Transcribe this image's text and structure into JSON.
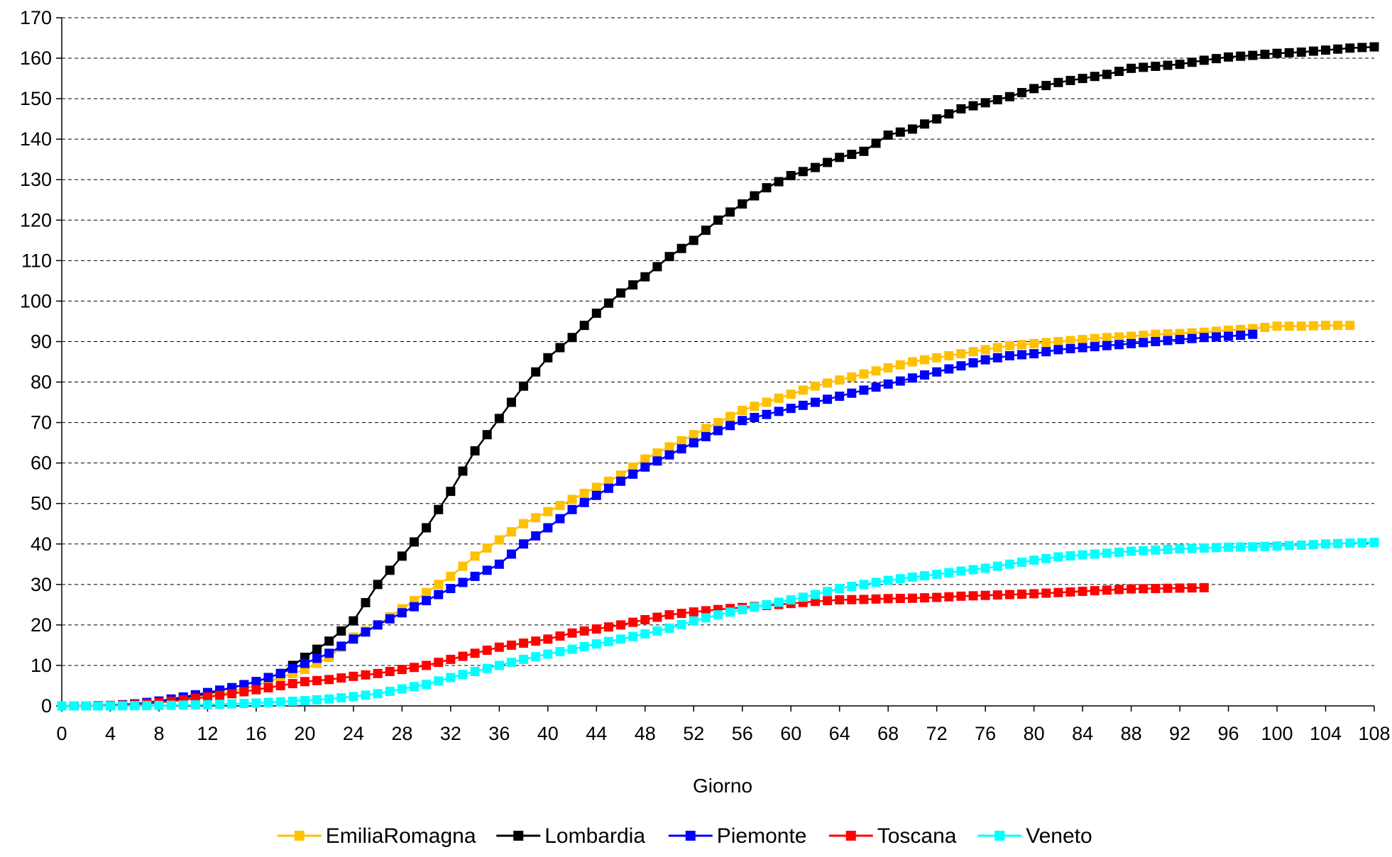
{
  "chart_data": {
    "type": "line",
    "title": "",
    "xlabel": "Giorno",
    "ylabel": "",
    "xlim": [
      0,
      108
    ],
    "ylim": [
      0,
      170
    ],
    "x_ticks": [
      "0",
      "4",
      "8",
      "12",
      "16",
      "20",
      "24",
      "28",
      "32",
      "36",
      "40",
      "44",
      "48",
      "52",
      "56",
      "60",
      "64",
      "68",
      "72",
      "76",
      "80",
      "84",
      "88",
      "92",
      "96",
      "100",
      "104",
      "108"
    ],
    "y_ticks": [
      "0",
      "10",
      "20",
      "30",
      "40",
      "50",
      "60",
      "70",
      "80",
      "90",
      "100",
      "110",
      "120",
      "130",
      "140",
      "150",
      "160",
      "170"
    ],
    "grid": "horizontal dashed",
    "legend_position": "bottom",
    "series": [
      {
        "name": "EmiliaRomagna",
        "color": "#FFC000",
        "points": [
          [
            0,
            0
          ],
          [
            2,
            0
          ],
          [
            4,
            0.1
          ],
          [
            6,
            0.3
          ],
          [
            8,
            0.8
          ],
          [
            10,
            1.5
          ],
          [
            12,
            2.5
          ],
          [
            14,
            3.5
          ],
          [
            16,
            5
          ],
          [
            18,
            7
          ],
          [
            20,
            9
          ],
          [
            22,
            12
          ],
          [
            24,
            17
          ],
          [
            26,
            20
          ],
          [
            28,
            24
          ],
          [
            30,
            28
          ],
          [
            32,
            32
          ],
          [
            34,
            37
          ],
          [
            36,
            41
          ],
          [
            38,
            45
          ],
          [
            40,
            48
          ],
          [
            42,
            51
          ],
          [
            44,
            54
          ],
          [
            46,
            57
          ],
          [
            48,
            61
          ],
          [
            50,
            64
          ],
          [
            52,
            67
          ],
          [
            54,
            70
          ],
          [
            56,
            73
          ],
          [
            58,
            75
          ],
          [
            60,
            77
          ],
          [
            62,
            79
          ],
          [
            64,
            80.5
          ],
          [
            66,
            82
          ],
          [
            68,
            83.5
          ],
          [
            70,
            85
          ],
          [
            72,
            86
          ],
          [
            74,
            87
          ],
          [
            76,
            88
          ],
          [
            78,
            89
          ],
          [
            80,
            89.5
          ],
          [
            82,
            90
          ],
          [
            84,
            90.5
          ],
          [
            86,
            91
          ],
          [
            88,
            91.3
          ],
          [
            90,
            91.8
          ],
          [
            92,
            92
          ],
          [
            94,
            92.3
          ],
          [
            96,
            92.8
          ],
          [
            98,
            93.2
          ],
          [
            100,
            93.8
          ],
          [
            102,
            93.8
          ],
          [
            104,
            94
          ],
          [
            106,
            94
          ]
        ]
      },
      {
        "name": "Lombardia",
        "color": "#000000",
        "points": [
          [
            0,
            0
          ],
          [
            2,
            0
          ],
          [
            4,
            0.1
          ],
          [
            6,
            0.4
          ],
          [
            8,
            1
          ],
          [
            10,
            2
          ],
          [
            12,
            3
          ],
          [
            14,
            4.5
          ],
          [
            16,
            6
          ],
          [
            18,
            8
          ],
          [
            20,
            12
          ],
          [
            22,
            16
          ],
          [
            24,
            21
          ],
          [
            26,
            30
          ],
          [
            28,
            37
          ],
          [
            30,
            44
          ],
          [
            32,
            53
          ],
          [
            34,
            63
          ],
          [
            36,
            71
          ],
          [
            38,
            79
          ],
          [
            40,
            86
          ],
          [
            42,
            91
          ],
          [
            44,
            97
          ],
          [
            46,
            102
          ],
          [
            48,
            106
          ],
          [
            50,
            111
          ],
          [
            52,
            115
          ],
          [
            54,
            120
          ],
          [
            56,
            124
          ],
          [
            58,
            128
          ],
          [
            60,
            131
          ],
          [
            62,
            133
          ],
          [
            64,
            135.5
          ],
          [
            66,
            137
          ],
          [
            68,
            141
          ],
          [
            70,
            142.5
          ],
          [
            72,
            145
          ],
          [
            74,
            147.5
          ],
          [
            76,
            149
          ],
          [
            78,
            150.5
          ],
          [
            80,
            152.5
          ],
          [
            82,
            154
          ],
          [
            84,
            155
          ],
          [
            86,
            156
          ],
          [
            88,
            157.5
          ],
          [
            90,
            158
          ],
          [
            92,
            158.5
          ],
          [
            94,
            159.5
          ],
          [
            96,
            160.3
          ],
          [
            98,
            160.7
          ],
          [
            100,
            161.2
          ],
          [
            102,
            161.5
          ],
          [
            104,
            162
          ],
          [
            106,
            162.5
          ],
          [
            108,
            162.8
          ]
        ]
      },
      {
        "name": "Piemonte",
        "color": "#0000FF",
        "points": [
          [
            0,
            0
          ],
          [
            2,
            0
          ],
          [
            4,
            0.1
          ],
          [
            6,
            0.5
          ],
          [
            8,
            1.2
          ],
          [
            10,
            2.2
          ],
          [
            12,
            3.3
          ],
          [
            14,
            4.5
          ],
          [
            16,
            6
          ],
          [
            18,
            8
          ],
          [
            20,
            10.5
          ],
          [
            22,
            13
          ],
          [
            24,
            16.5
          ],
          [
            26,
            20
          ],
          [
            28,
            23
          ],
          [
            30,
            26
          ],
          [
            32,
            29
          ],
          [
            34,
            32
          ],
          [
            36,
            35
          ],
          [
            38,
            40
          ],
          [
            40,
            44
          ],
          [
            42,
            48.5
          ],
          [
            44,
            52
          ],
          [
            46,
            55.5
          ],
          [
            48,
            59
          ],
          [
            50,
            62
          ],
          [
            52,
            65
          ],
          [
            54,
            68
          ],
          [
            56,
            70.5
          ],
          [
            58,
            72
          ],
          [
            60,
            73.5
          ],
          [
            62,
            75
          ],
          [
            64,
            76.5
          ],
          [
            66,
            78
          ],
          [
            68,
            79.5
          ],
          [
            70,
            81
          ],
          [
            72,
            82.5
          ],
          [
            74,
            84
          ],
          [
            76,
            85.5
          ],
          [
            78,
            86.5
          ],
          [
            80,
            87
          ],
          [
            82,
            88
          ],
          [
            84,
            88.5
          ],
          [
            86,
            89
          ],
          [
            88,
            89.5
          ],
          [
            90,
            90
          ],
          [
            92,
            90.5
          ],
          [
            94,
            91
          ],
          [
            96,
            91.3
          ],
          [
            98,
            91.8
          ]
        ]
      },
      {
        "name": "Toscana",
        "color": "#FF0000",
        "points": [
          [
            0,
            0
          ],
          [
            2,
            0
          ],
          [
            4,
            0.1
          ],
          [
            6,
            0.3
          ],
          [
            8,
            0.8
          ],
          [
            10,
            1.5
          ],
          [
            12,
            2.2
          ],
          [
            14,
            3
          ],
          [
            16,
            4
          ],
          [
            18,
            5
          ],
          [
            20,
            6
          ],
          [
            22,
            6.5
          ],
          [
            24,
            7.3
          ],
          [
            26,
            8
          ],
          [
            28,
            9
          ],
          [
            30,
            10
          ],
          [
            32,
            11.5
          ],
          [
            34,
            13
          ],
          [
            36,
            14.5
          ],
          [
            38,
            15.5
          ],
          [
            40,
            16.5
          ],
          [
            42,
            18
          ],
          [
            44,
            19
          ],
          [
            46,
            20
          ],
          [
            48,
            21.3
          ],
          [
            50,
            22.5
          ],
          [
            52,
            23.2
          ],
          [
            54,
            23.8
          ],
          [
            56,
            24.3
          ],
          [
            58,
            24.8
          ],
          [
            60,
            25.3
          ],
          [
            62,
            25.8
          ],
          [
            64,
            26.2
          ],
          [
            66,
            26.3
          ],
          [
            68,
            26.5
          ],
          [
            70,
            26.6
          ],
          [
            72,
            26.8
          ],
          [
            74,
            27.1
          ],
          [
            76,
            27.3
          ],
          [
            78,
            27.5
          ],
          [
            80,
            27.7
          ],
          [
            82,
            28
          ],
          [
            84,
            28.3
          ],
          [
            86,
            28.6
          ],
          [
            88,
            28.9
          ],
          [
            90,
            29
          ],
          [
            92,
            29.1
          ],
          [
            94,
            29.2
          ]
        ]
      },
      {
        "name": "Veneto",
        "color": "#00FFFF",
        "points": [
          [
            0,
            0
          ],
          [
            2,
            0
          ],
          [
            4,
            0
          ],
          [
            6,
            0.05
          ],
          [
            8,
            0.1
          ],
          [
            10,
            0.2
          ],
          [
            12,
            0.3
          ],
          [
            14,
            0.5
          ],
          [
            16,
            0.7
          ],
          [
            18,
            1
          ],
          [
            20,
            1.3
          ],
          [
            22,
            1.7
          ],
          [
            24,
            2.3
          ],
          [
            26,
            3
          ],
          [
            28,
            4.2
          ],
          [
            30,
            5.3
          ],
          [
            32,
            7
          ],
          [
            34,
            8.5
          ],
          [
            36,
            10
          ],
          [
            38,
            11.5
          ],
          [
            40,
            12.8
          ],
          [
            42,
            14
          ],
          [
            44,
            15.3
          ],
          [
            46,
            16.5
          ],
          [
            48,
            17.8
          ],
          [
            50,
            19.2
          ],
          [
            52,
            21
          ],
          [
            54,
            22.5
          ],
          [
            56,
            23.8
          ],
          [
            58,
            25
          ],
          [
            60,
            26.2
          ],
          [
            62,
            27.5
          ],
          [
            64,
            29
          ],
          [
            66,
            30
          ],
          [
            68,
            31
          ],
          [
            70,
            31.8
          ],
          [
            72,
            32.5
          ],
          [
            74,
            33.3
          ],
          [
            76,
            34
          ],
          [
            78,
            35
          ],
          [
            80,
            36
          ],
          [
            82,
            36.8
          ],
          [
            84,
            37.3
          ],
          [
            86,
            37.7
          ],
          [
            88,
            38.2
          ],
          [
            90,
            38.5
          ],
          [
            92,
            38.8
          ],
          [
            94,
            39
          ],
          [
            96,
            39.2
          ],
          [
            98,
            39.3
          ],
          [
            100,
            39.5
          ],
          [
            102,
            39.7
          ],
          [
            104,
            40
          ],
          [
            106,
            40.2
          ],
          [
            108,
            40.4
          ]
        ]
      }
    ]
  }
}
